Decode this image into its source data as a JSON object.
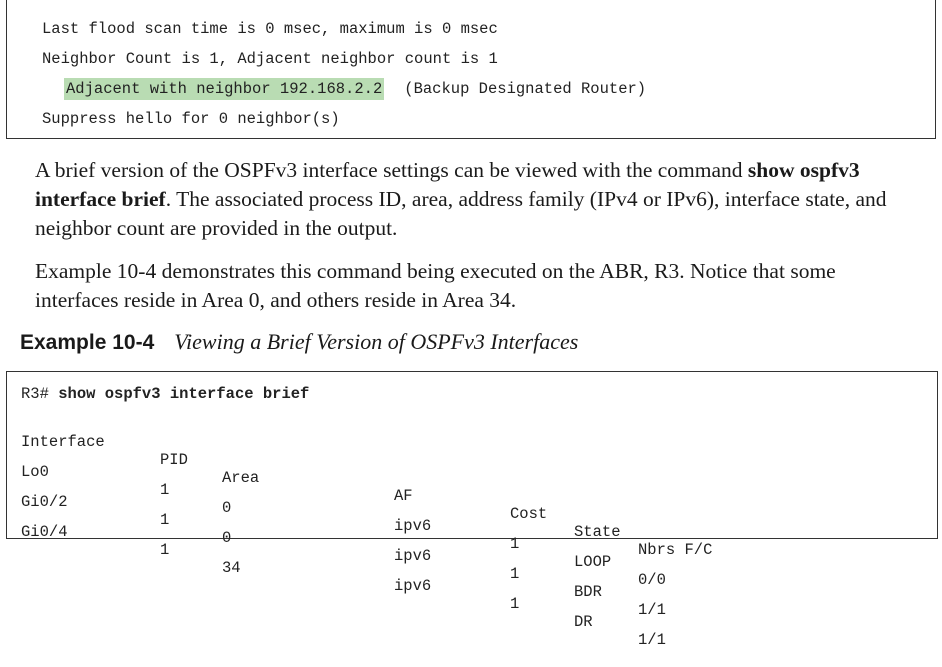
{
  "top_code": {
    "lines": [
      "Last flood scan time is 0 msec, maximum is 0 msec",
      "Neighbor Count is 1, Adjacent neighbor count is 1"
    ],
    "highlight": "Adjacent with neighbor 192.168.2.2",
    "highlight_suffix": "(Backup Designated Router)",
    "last_line": "Suppress hello for 0 neighbor(s)"
  },
  "para1": {
    "text_before": "A brief version of the OSPFv3 interface settings can be viewed with the command ",
    "command": "show ospfv3 interface brief",
    "text_after": ". The associated process ID, area, address family (IPv4 or IPv6), interface state, and neighbor count are provided in the output."
  },
  "para2": {
    "text": "Example 10-4 demonstrates this command being executed on the ABR, R3. Notice that some interfaces reside in Area 0, and others reside in Area 34."
  },
  "example": {
    "label": "Example 10-4",
    "title": "Viewing a Brief Version of OSPFv3 Interfaces"
  },
  "bottom_code": {
    "prompt": "R3#",
    "command": "show ospfv3 interface brief",
    "headers": [
      "Interface",
      "PID",
      "Area",
      "AF",
      "Cost",
      "State",
      "Nbrs F/C"
    ],
    "rows": [
      [
        "Lo0",
        "1",
        "0",
        "ipv6",
        "1",
        "LOOP",
        "0/0"
      ],
      [
        "Gi0/2",
        "1",
        "0",
        "ipv6",
        "1",
        "BDR",
        "1/1"
      ],
      [
        "Gi0/4",
        "1",
        "34",
        "ipv6",
        "1",
        "DR",
        "1/1"
      ]
    ]
  }
}
